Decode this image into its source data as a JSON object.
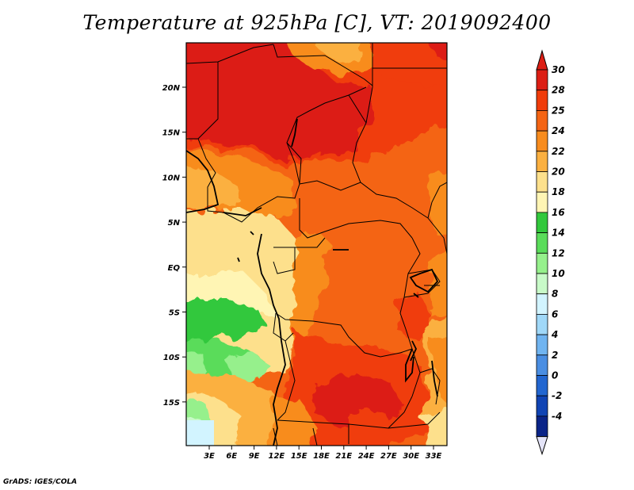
{
  "title": "Temperature at 925hPa [C], VT: 2019092400",
  "credit": "GrADS: IGES/COLA",
  "lat_ticks": [
    "20N",
    "15N",
    "10N",
    "5N",
    "EQ",
    "5S",
    "10S",
    "15S"
  ],
  "lon_ticks": [
    "3E",
    "6E",
    "9E",
    "12E",
    "15E",
    "18E",
    "21E",
    "24E",
    "27E",
    "30E",
    "33E"
  ],
  "colorbar": {
    "labels": [
      "30",
      "28",
      "25",
      "24",
      "22",
      "20",
      "18",
      "16",
      "14",
      "12",
      "10",
      "8",
      "6",
      "4",
      "2",
      "0",
      "-2",
      "-4"
    ],
    "colors": [
      "#dc1e14",
      "#f03c0a",
      "#f46414",
      "#f88c1e",
      "#fbb040",
      "#fde08c",
      "#fff5b4",
      "#32c83c",
      "#5adc5a",
      "#96f08c",
      "#c8fac8",
      "#d2f4ff",
      "#a0d8f8",
      "#70b4f0",
      "#4a8ee2",
      "#2266d0",
      "#1044b4",
      "#0a2488"
    ],
    "top_arrow_color": "#dc1e14",
    "bottom_arrow_color": "#e4e4f8"
  },
  "map": {
    "lat_range": [
      -19.5,
      24.5
    ],
    "lon_range": [
      0,
      29
    ]
  }
}
